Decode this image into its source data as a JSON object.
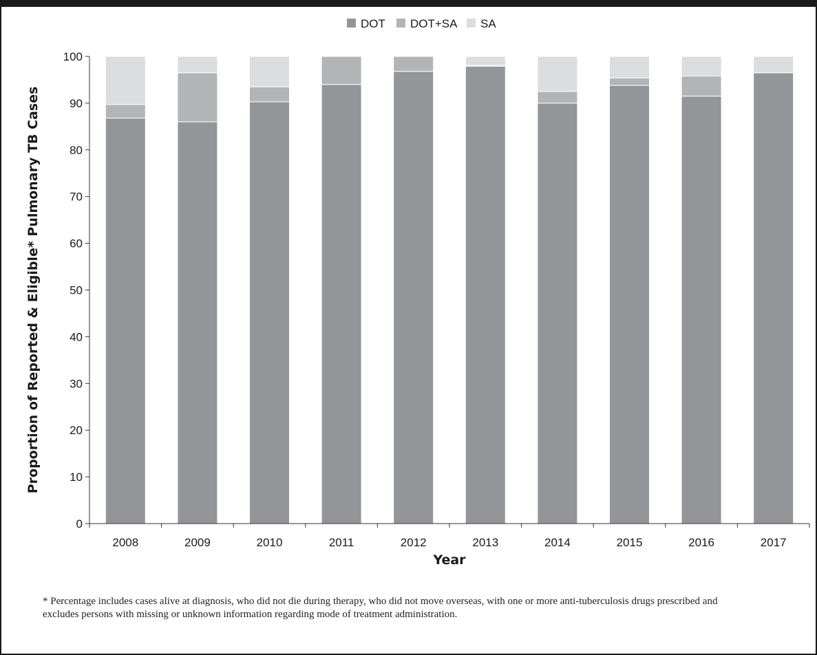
{
  "chart_data": {
    "type": "bar",
    "stacked": true,
    "categories": [
      "2008",
      "2009",
      "2010",
      "2011",
      "2012",
      "2013",
      "2014",
      "2015",
      "2016",
      "2017"
    ],
    "series": [
      {
        "name": "DOT",
        "color": "#939598",
        "values": [
          86.8,
          86.0,
          90.3,
          94.0,
          96.8,
          97.9,
          90.0,
          93.8,
          91.5,
          96.5
        ]
      },
      {
        "name": "DOT+SA",
        "color": "#b3b4b6",
        "values": [
          2.9,
          10.5,
          3.2,
          6.0,
          3.2,
          0.2,
          2.5,
          1.6,
          4.3,
          0.0
        ]
      },
      {
        "name": "SA",
        "color": "#dcddde",
        "values": [
          10.3,
          3.5,
          6.5,
          0.0,
          0.0,
          1.9,
          7.5,
          4.6,
          4.2,
          3.5
        ]
      }
    ],
    "title": "",
    "xlabel": "Year",
    "ylabel": "Proportion of Reported & Eligible* Pulmonary TB Cases",
    "ylim": [
      0,
      100
    ],
    "yticks": [
      0,
      10,
      20,
      30,
      40,
      50,
      60,
      70,
      80,
      90,
      100
    ],
    "grid": false,
    "legend_position": "top-center"
  },
  "footnote": "* Percentage includes cases alive at diagnosis, who did not die during therapy, who did not move overseas, with one or more anti-tuberculosis drugs prescribed and excludes persons with missing or unknown information regarding mode of treatment administration."
}
